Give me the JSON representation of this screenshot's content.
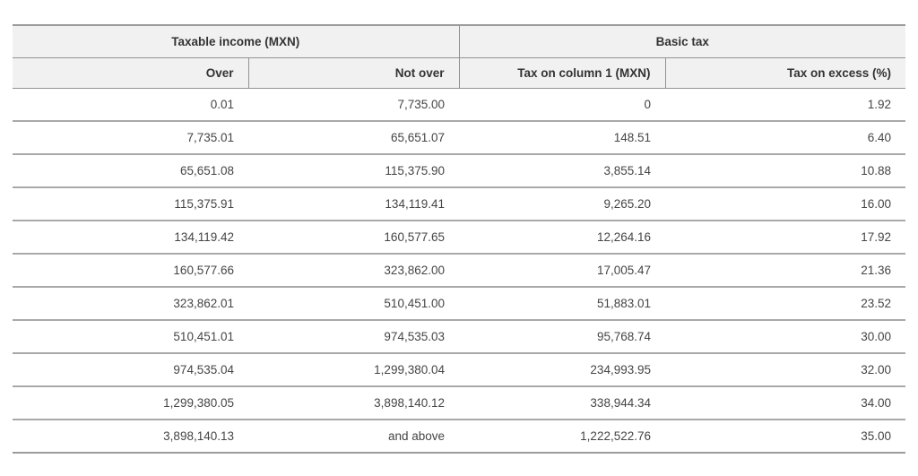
{
  "table": {
    "group_headers": [
      {
        "label": "Taxable income (MXN)",
        "span": 2
      },
      {
        "label": "Basic tax",
        "span": 2
      }
    ],
    "column_headers": [
      "Over",
      "Not over",
      "Tax on column 1 (MXN)",
      "Tax on excess (%)"
    ],
    "rows": [
      [
        "0.01",
        "7,735.00",
        "0",
        "1.92"
      ],
      [
        "7,735.01",
        "65,651.07",
        "148.51",
        "6.40"
      ],
      [
        "65,651.08",
        "115,375.90",
        "3,855.14",
        "10.88"
      ],
      [
        "115,375.91",
        "134,119.41",
        "9,265.20",
        "16.00"
      ],
      [
        "134,119.42",
        "160,577.65",
        "12,264.16",
        "17.92"
      ],
      [
        "160,577.66",
        "323,862.00",
        "17,005.47",
        "21.36"
      ],
      [
        "323,862.01",
        "510,451.00",
        "51,883.01",
        "23.52"
      ],
      [
        "510,451.01",
        "974,535.03",
        "95,768.74",
        "30.00"
      ],
      [
        "974,535.04",
        "1,299,380.04",
        "234,993.95",
        "32.00"
      ],
      [
        "1,299,380.05",
        "3,898,140.12",
        "338,944.34",
        "34.00"
      ],
      [
        "3,898,140.13",
        "and above",
        "1,222,522.76",
        "35.00"
      ]
    ]
  },
  "chart_data": {
    "type": "table",
    "title": "",
    "column_groups": [
      {
        "label": "Taxable income (MXN)",
        "columns": [
          "Over",
          "Not over"
        ]
      },
      {
        "label": "Basic tax",
        "columns": [
          "Tax on column 1 (MXN)",
          "Tax on excess (%)"
        ]
      }
    ],
    "columns": [
      "Over",
      "Not over",
      "Tax on column 1 (MXN)",
      "Tax on excess (%)"
    ],
    "rows": [
      [
        "0.01",
        "7,735.00",
        "0",
        "1.92"
      ],
      [
        "7,735.01",
        "65,651.07",
        "148.51",
        "6.40"
      ],
      [
        "65,651.08",
        "115,375.90",
        "3,855.14",
        "10.88"
      ],
      [
        "115,375.91",
        "134,119.41",
        "9,265.20",
        "16.00"
      ],
      [
        "134,119.42",
        "160,577.65",
        "12,264.16",
        "17.92"
      ],
      [
        "160,577.66",
        "323,862.00",
        "17,005.47",
        "21.36"
      ],
      [
        "323,862.01",
        "510,451.00",
        "51,883.01",
        "23.52"
      ],
      [
        "510,451.01",
        "974,535.03",
        "95,768.74",
        "30.00"
      ],
      [
        "974,535.04",
        "1,299,380.04",
        "234,993.95",
        "32.00"
      ],
      [
        "1,299,380.05",
        "3,898,140.12",
        "338,944.34",
        "34.00"
      ],
      [
        "3,898,140.13",
        "and above",
        "1,222,522.76",
        "35.00"
      ]
    ]
  },
  "colors": {
    "header_background": "#f1f1f1",
    "header_text": "#333333",
    "cell_text": "#454545",
    "border": "#9b9b9b",
    "row_separator": "#a9a9a9"
  }
}
